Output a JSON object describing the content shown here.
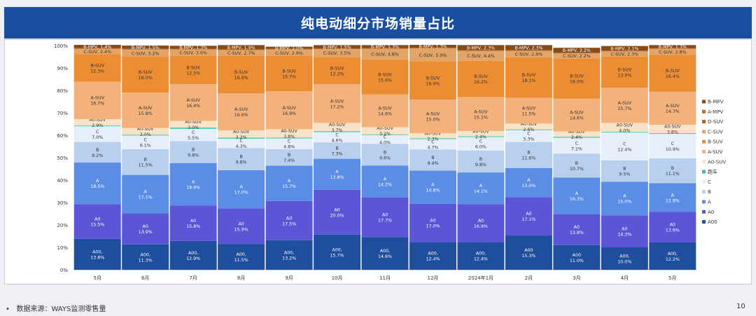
{
  "header": {
    "title": "纯电动细分市场销量占比"
  },
  "footer": {
    "bullet": "•",
    "source": "数据来源：WAYS监测零售量",
    "page_number": "10"
  },
  "colors": {
    "A00": "#1f4e9c",
    "A0": "#5b56d6",
    "A": "#5b8de6",
    "B": "#b8cfee",
    "C": "#e6eefa",
    "跑车": "#2ec4a4",
    "A0-SUV": "#f8e2c8",
    "A-SUV": "#f3b27c",
    "B-SUV": "#ec8d34",
    "C-SUV": "#e3a468",
    "D-SUV": "#b4601f",
    "A-MPV": "#c06a25",
    "B-MPV": "#8a4a16"
  },
  "chart_data": {
    "type": "bar",
    "stacked": true,
    "title": "纯电动细分市场销量占比",
    "categories": [
      "5月",
      "6月",
      "7月",
      "8月",
      "9月",
      "10月",
      "11月",
      "12月",
      "2024年1月",
      "2月",
      "3月",
      "4月",
      "5月"
    ],
    "yticks": [
      "0%",
      "10%",
      "20%",
      "30%",
      "40%",
      "50%",
      "60%",
      "70%",
      "80%",
      "90%",
      "100%"
    ],
    "ylim": [
      0,
      100
    ],
    "legend_position": "right",
    "legend_order": [
      "B-MPV",
      "A-MPV",
      "D-SUV",
      "C-SUV",
      "B-SUV",
      "A-SUV",
      "A0-SUV",
      "跑车",
      "C",
      "B",
      "A",
      "A0",
      "A00"
    ],
    "series": [
      {
        "name": "A00",
        "values": [
          13.8,
          11.3,
          12.9,
          11.5,
          13.2,
          15.7,
          14.6,
          12.4,
          12.4,
          15.3,
          11.0,
          10.0,
          12.2
        ],
        "labels": [
          "A00,\n13.8%",
          "A00,\n11.3%",
          "A00,\n12.9%",
          "A00,\n11.5%",
          "A00,\n13.2%",
          "A00,\n15.7%",
          "A00,\n14.6%",
          "A00,\n12.4%",
          "A00,\n12.4%",
          "A00\n15.3%",
          "A00\n11.0%",
          "A00,\n10.0%",
          "A00,\n12.2%"
        ]
      },
      {
        "name": "A0",
        "values": [
          15.5,
          13.9,
          15.8,
          15.9,
          17.5,
          20.0,
          17.7,
          17.0,
          16.9,
          17.1,
          13.8,
          14.3,
          13.6
        ],
        "labels": [
          "A0\n15.5%",
          "A0\n13.9%",
          "A0\n15.8%",
          "A0\n15.9%",
          "A0\n17.5%",
          "A0\n20.0%",
          "A0\n17.7%",
          "A0\n17.0%",
          "A0\n16.9%",
          "A0\n17.1%",
          "A0\n13.8%",
          "A0\n14.3%",
          "A0\n13.6%"
        ]
      },
      {
        "name": "A",
        "values": [
          18.5,
          17.1,
          18.9,
          17.0,
          15.7,
          13.8,
          14.2,
          14.8,
          14.1,
          13.0,
          16.3,
          15.0,
          12.8
        ],
        "labels": [
          "A\n18.5%",
          "A\n17.1%",
          "A\n18.9%",
          "A\n17.0%",
          "A\n15.7%",
          "A\n13.8%",
          "A\n14.2%",
          "A\n14.8%",
          "A\n14.1%",
          "A\n13.0%",
          "A\n16.3%",
          "A\n15.0%",
          "A\n12.8%"
        ]
      },
      {
        "name": "B",
        "values": [
          9.2,
          11.5,
          9.8,
          9.8,
          7.4,
          7.3,
          9.6,
          9.4,
          9.8,
          11.6,
          10.7,
          9.5,
          11.1
        ],
        "labels": [
          "B\n9.2%",
          "B\n11.5%",
          "B\n9.8%",
          "B\n9.8%",
          "B\n7.4%",
          "B\n7.3%",
          "B\n9.6%",
          "B\n9.4%",
          "B\n9.8%",
          "B\n11.6%",
          "B\n10.7%",
          "B\n9.5%",
          "B\n11.1%"
        ]
      },
      {
        "name": "C",
        "values": [
          7.0,
          6.1,
          5.5,
          4.3,
          4.8,
          4.6,
          4.0,
          4.7,
          6.0,
          5.3,
          7.1,
          12.4,
          10.9
        ],
        "labels": [
          "C\n7.0%",
          "C\n6.1%",
          "C\n5.5%",
          "C\n4.3%",
          "C\n4.8%",
          "C\n4.6%",
          "C\n4.0%",
          "C\n4.7%",
          "C\n6.0%",
          "C\n5.3%",
          "C\n7.1%",
          "C\n12.4%",
          "C\n10.9%"
        ]
      },
      {
        "name": "跑车",
        "values": [
          0.3,
          0.3,
          0.5,
          0.4,
          0.3,
          0.4,
          0.3,
          0.3,
          0.3,
          0.3,
          0.4,
          0.3,
          0.3
        ],
        "labels": [
          "",
          "",
          "",
          "",
          "",
          "",
          "",
          "",
          "",
          "",
          "",
          "",
          ""
        ]
      },
      {
        "name": "A0-SUV",
        "values": [
          2.9,
          3.0,
          3.0,
          3.2,
          3.8,
          3.7,
          3.2,
          2.3,
          2.4,
          2.6,
          2.4,
          4.0,
          3.8
        ],
        "labels": [
          "A0-SUV\n2.9%",
          "A0-SUV\n3.0%",
          "A0-SUV\n3.0%",
          "A0-SUV\n3.2%",
          "A0-SUV\n3.8%",
          "A0-SUV\n3.7%",
          "A0-SUV\n3.2%",
          "A0-SUV\n2.3%",
          "A0-SUV\n2.4%",
          "A0-SUV\n2.6%",
          "A0-SUV\n2.4%",
          "A0-SUV\n4.0%",
          "A0-SUV\n3.8%"
        ]
      },
      {
        "name": "A-SUV",
        "values": [
          16.7,
          15.8,
          16.4,
          16.6,
          16.9,
          17.2,
          14.6,
          15.0,
          15.1,
          11.5,
          14.6,
          15.7,
          14.7
        ],
        "labels": [
          "A-SUV\n16.7%",
          "A-SUV\n15.8%",
          "A-SUV\n16.4%",
          "A-SUV\n16.6%",
          "A-SUV\n16.9%",
          "A-SUV\n17.2%",
          "A-SUV\n14.6%",
          "A-SUV\n15.0%",
          "A-SUV\n15.1%",
          "A-SUV\n11.5%",
          "A-SUV\n14.6%",
          "A-SUV\n15.7%",
          "A-SUV\n14.7%"
        ]
      },
      {
        "name": "B-SUV",
        "values": [
          12.3,
          16.0,
          12.5,
          16.6,
          15.7,
          12.2,
          15.6,
          16.9,
          16.2,
          18.1,
          18.0,
          13.9,
          16.4
        ],
        "labels": [
          "B-SUV\n12.3%",
          "B-SUV\n16.0%",
          "B-SUV\n12.5%",
          "B-SUV\n16.6%",
          "B-SUV\n15.7%",
          "B-SUV\n12.2%",
          "B-SUV\n15.6%",
          "B-SUV\n16.9%",
          "B-SUV\n16.2%",
          "B-SUV\n18.1%",
          "B-SUV\n18.0%",
          "B-SUV\n13.9%",
          "B-SUV\n16.4%"
        ]
      },
      {
        "name": "C-SUV",
        "values": [
          2.4,
          3.2,
          3.0,
          2.7,
          2.9,
          3.5,
          4.8,
          5.9,
          4.4,
          2.8,
          2.2,
          2.3,
          2.8
        ],
        "labels": [
          "C-SUV, 2.4%",
          "C-SUV, 3.2%",
          "C-SUV, 3.0%",
          "C-SUV, 2.7%",
          "C-SUV, 2.9%",
          "C-SUV, 3.5%",
          "C-SUV, 4.8%",
          "C-SUV, 5.9%",
          "C-SUV, 4.4%",
          "C-SUV, 2.8%",
          "C-SUV, 2.2%",
          "C-SUV, 2.3%",
          "C-SUV, 2.8%"
        ]
      },
      {
        "name": "D-SUV",
        "values": [
          0.2,
          0.2,
          0.2,
          0.2,
          0.2,
          0.2,
          0.2,
          0.2,
          0.2,
          0.2,
          0.2,
          0.2,
          0.2
        ],
        "labels": [
          "",
          "",
          "",
          "",
          "",
          "",
          "",
          "",
          "",
          "",
          "",
          "",
          ""
        ]
      },
      {
        "name": "A-MPV",
        "values": [
          0.1,
          0.1,
          0.1,
          0.1,
          0.1,
          0.1,
          0.1,
          0.1,
          0.1,
          0.1,
          0.1,
          0.1,
          0.1
        ],
        "labels": [
          "",
          "",
          "",
          "",
          "",
          "",
          "",
          "",
          "",
          "",
          "",
          "",
          ""
        ]
      },
      {
        "name": "B-MPV",
        "values": [
          1.4,
          1.5,
          1.3,
          1.9,
          1.0,
          1.5,
          1.3,
          1.3,
          2.3,
          2.3,
          2.2,
          2.1,
          1.3
        ],
        "labels": [
          "B-MPV, 1.4%",
          "B-MPV, 1.5%",
          "B-MPV, 1.3%",
          "B-MPV, 1.9%",
          "B-MPV, 1.0%",
          "B-MPV, 1.5%",
          "B-MPV, 1.3%",
          "B-MPV, 1.3%",
          "B-MPV, 2.3%",
          "B-MPV, 2.3%",
          "B-MPV, 2.2%",
          "B-MPV, 2.1%",
          "B-MPV, 1.3%"
        ]
      }
    ]
  }
}
